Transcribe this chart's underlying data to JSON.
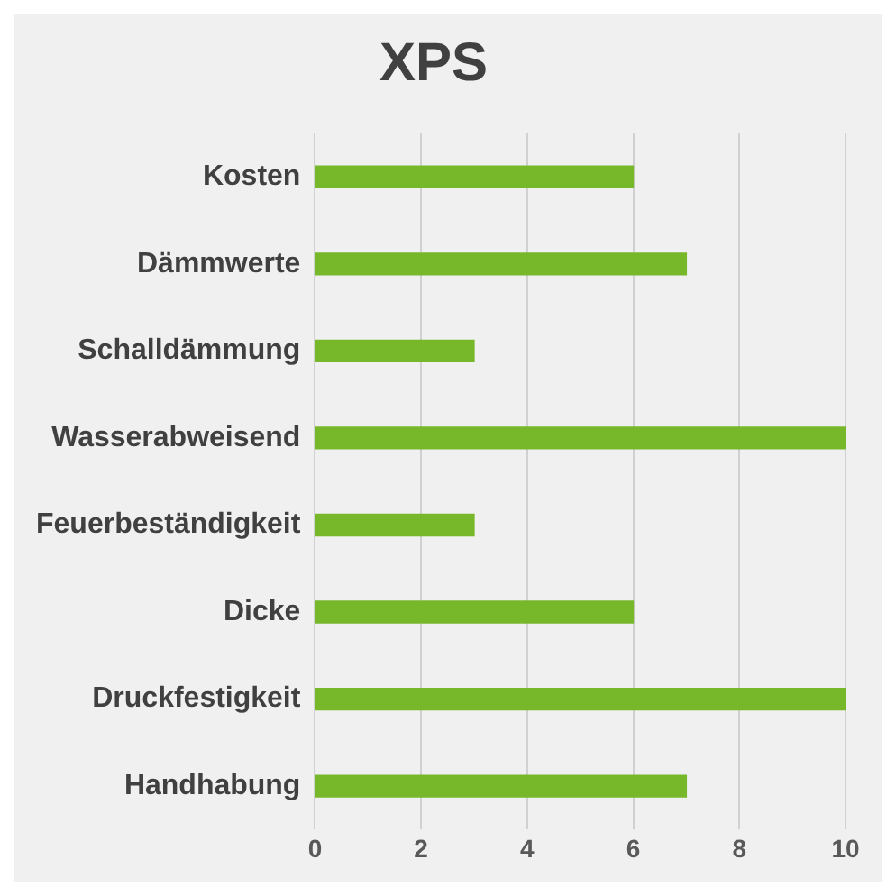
{
  "chart_data": {
    "type": "bar",
    "title": "XPS",
    "orientation": "horizontal",
    "categories": [
      "Kosten",
      "Dämmwerte",
      "Schalldämmung",
      "Wasserabweisend",
      "Feuerbeständigkeit",
      "Dicke",
      "Druckfestigkeit",
      "Handhabung"
    ],
    "values": [
      6,
      7,
      3,
      10,
      3,
      6,
      10,
      7
    ],
    "color": "#77b82a",
    "xlim": [
      0,
      10
    ],
    "xticks": [
      0,
      2,
      4,
      6,
      8,
      10
    ],
    "grid": "x",
    "legend": false
  }
}
